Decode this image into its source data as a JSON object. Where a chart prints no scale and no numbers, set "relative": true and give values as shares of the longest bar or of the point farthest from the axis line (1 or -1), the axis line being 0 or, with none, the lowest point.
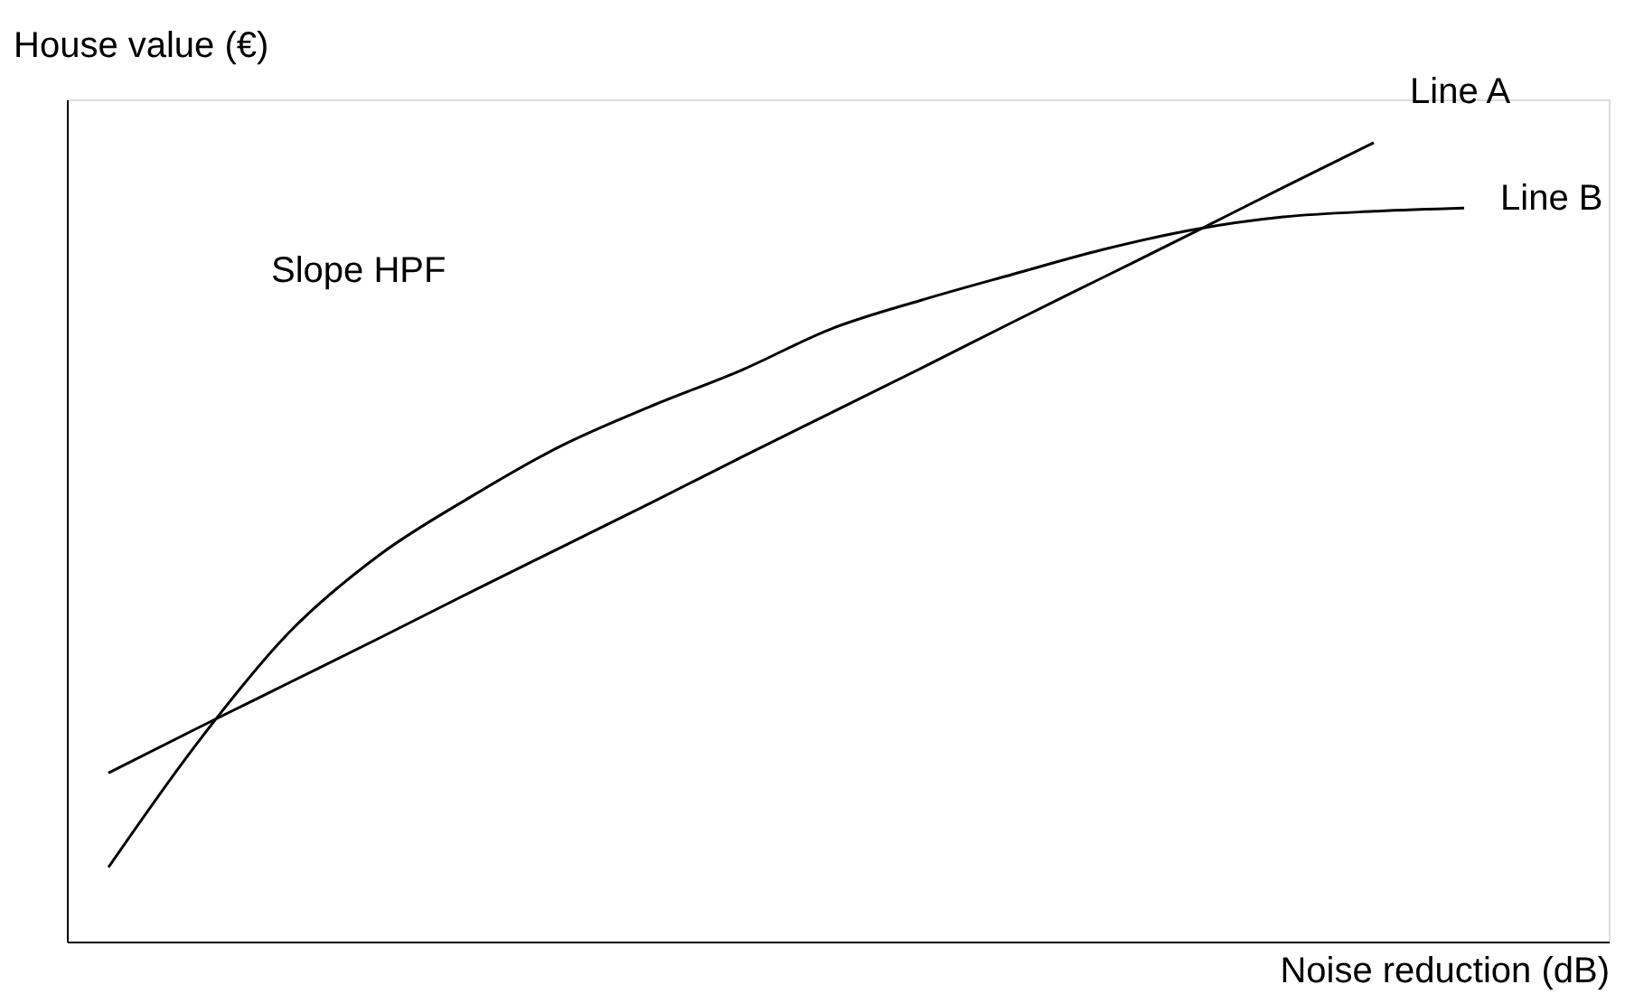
{
  "chart_data": {
    "type": "line",
    "relative": true,
    "xlabel": "Noise reduction (dB)",
    "ylabel": "House value (€)",
    "categories": [
      null,
      null,
      null,
      null,
      null,
      null,
      null,
      null,
      null,
      null,
      null,
      null,
      null,
      null,
      null,
      null
    ],
    "series": [
      {
        "name": "Line A",
        "color": "#000000",
        "values": [
          0.211,
          0.268,
          0.324,
          0.38,
          0.437,
          0.493,
          0.549,
          0.606,
          0.662,
          0.718,
          0.775,
          0.831,
          0.887,
          0.944,
          1.0,
          null
        ]
      },
      {
        "name": "Line B",
        "color": "#000000",
        "values": [
          0.093,
          0.251,
          0.387,
          0.484,
          0.556,
          0.62,
          0.67,
          0.715,
          0.767,
          0.803,
          0.835,
          0.866,
          0.891,
          0.907,
          0.914,
          0.918
        ]
      }
    ],
    "annotations": [
      "Slope HPF"
    ],
    "grid": false,
    "marker": "none",
    "line_style": "solid"
  }
}
